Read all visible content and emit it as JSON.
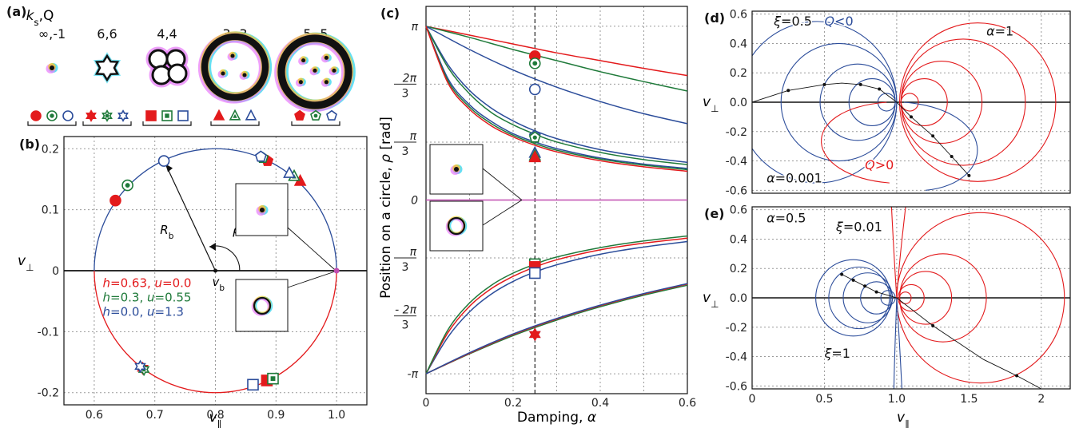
{
  "colors": {
    "red": "#e31a1c",
    "green": "#1f7a3a",
    "blue": "#2b4c9a",
    "magenta": "#c04cb0",
    "black": "#111111"
  },
  "panel_a": {
    "label": "(a)",
    "header": "k",
    "header_sub": "s",
    "header_rest": ",Q",
    "skyrmions": [
      {
        "name": "inf",
        "line1": "∞,-1"
      },
      {
        "name": "66",
        "line1": "6,6"
      },
      {
        "name": "44",
        "line1": "4,4"
      },
      {
        "name": "33",
        "line1": "3,-3"
      },
      {
        "name": "55",
        "line1": "5,-5"
      }
    ],
    "marker_groups": [
      {
        "shape": "circle"
      },
      {
        "shape": "star"
      },
      {
        "shape": "square"
      },
      {
        "shape": "triangle"
      },
      {
        "shape": "pentagon"
      }
    ]
  },
  "chart_data": [
    {
      "id": "b",
      "type": "scatter",
      "label": "(b)",
      "xlabel": "v",
      "xlabel_sub": "∥",
      "ylabel": "v",
      "ylabel_sub": "⊥",
      "xlim": [
        0.55,
        1.05
      ],
      "ylim": [
        -0.22,
        0.22
      ],
      "xticks": [
        "0.6",
        "0.7",
        "0.8",
        "0.9",
        "1.0"
      ],
      "xtick_values": [
        0.6,
        0.7,
        0.8,
        0.9,
        1.0
      ],
      "yticks": [
        "0.2",
        "0.1",
        "0",
        "-0.1",
        "-0.2"
      ],
      "ytick_values": [
        0.2,
        0.1,
        0,
        -0.1,
        -0.2
      ],
      "circle": {
        "cx": 0.8,
        "cy": 0,
        "r": 0.2
      },
      "annotations": {
        "Rb": "R",
        "Rb_sub": "b",
        "vb": "v",
        "vb_sub": "b",
        "rho": "ρ"
      },
      "legend": [
        {
          "h": "h",
          "hval": "=0.63, ",
          "u": "u",
          "uval": "=0.0",
          "color": "red"
        },
        {
          "h": "h",
          "hval": "=0.3, ",
          "u": "u",
          "uval": "=0.55",
          "color": "green"
        },
        {
          "h": "h",
          "hval": "=0.0, ",
          "u": "u",
          "uval": "=1.3",
          "color": "blue"
        }
      ],
      "points": [
        {
          "x": 0.635,
          "y": 0.115,
          "shape": "circle",
          "color": "red"
        },
        {
          "x": 0.655,
          "y": 0.14,
          "shape": "circle",
          "color": "green"
        },
        {
          "x": 0.715,
          "y": 0.18,
          "shape": "circle",
          "color": "blue"
        },
        {
          "x": 0.886,
          "y": 0.18,
          "shape": "pentagon",
          "color": "red"
        },
        {
          "x": 0.878,
          "y": 0.185,
          "shape": "pentagon",
          "color": "green"
        },
        {
          "x": 0.875,
          "y": 0.187,
          "shape": "pentagon",
          "color": "blue"
        },
        {
          "x": 0.94,
          "y": 0.147,
          "shape": "triangle",
          "color": "red"
        },
        {
          "x": 0.93,
          "y": 0.155,
          "shape": "triangle",
          "color": "green"
        },
        {
          "x": 0.922,
          "y": 0.16,
          "shape": "triangle",
          "color": "blue"
        },
        {
          "x": 0.68,
          "y": -0.16,
          "shape": "star",
          "color": "red"
        },
        {
          "x": 0.682,
          "y": -0.162,
          "shape": "star",
          "color": "green"
        },
        {
          "x": 0.676,
          "y": -0.157,
          "shape": "star",
          "color": "blue"
        },
        {
          "x": 0.885,
          "y": -0.18,
          "shape": "square",
          "color": "red"
        },
        {
          "x": 0.895,
          "y": -0.177,
          "shape": "square",
          "color": "green"
        },
        {
          "x": 0.862,
          "y": -0.187,
          "shape": "square",
          "color": "blue"
        },
        {
          "x": 1.0,
          "y": 0.0,
          "shape": "dot",
          "color": "magenta"
        }
      ]
    },
    {
      "id": "c",
      "type": "line",
      "label": "(c)",
      "xlabel": "Damping, ",
      "xlabel_it": "α",
      "ylabel": "Position on a circle,  ",
      "ylabel_it": "ρ",
      "ylabel_unit": " [rad]",
      "xlim": [
        0,
        0.6
      ],
      "ylim": [
        -3.5,
        3.5
      ],
      "xticks": [
        "0",
        "0.2",
        "0.4",
        "0.6"
      ],
      "xtick_values": [
        0,
        0.2,
        0.4,
        0.6
      ],
      "yticks": [
        "π",
        "2π/3",
        "π/3",
        "0",
        "π/3",
        "- 2π/3",
        "-π"
      ],
      "ytick_values": [
        3.14159,
        2.0944,
        1.0472,
        0,
        -1.0472,
        -2.0944,
        -3.14159
      ],
      "vline": 0.25,
      "hline": 0,
      "series": [
        {
          "color": "red",
          "x": [
            0,
            0.1,
            0.2,
            0.3,
            0.4,
            0.5,
            0.6
          ],
          "y": [
            3.14,
            2.98,
            2.82,
            2.66,
            2.52,
            2.38,
            2.25
          ]
        },
        {
          "color": "green",
          "x": [
            0,
            0.1,
            0.2,
            0.3,
            0.4,
            0.5,
            0.6
          ],
          "y": [
            3.14,
            2.94,
            2.72,
            2.52,
            2.32,
            2.14,
            1.97
          ]
        },
        {
          "color": "blue",
          "x": [
            0,
            0.1,
            0.2,
            0.3,
            0.4,
            0.5,
            0.6
          ],
          "y": [
            3.14,
            2.72,
            2.35,
            2.04,
            1.78,
            1.56,
            1.38
          ]
        },
        {
          "color": "blue",
          "x": [
            0,
            0.05,
            0.1,
            0.15,
            0.2,
            0.25,
            0.3,
            0.4,
            0.5,
            0.6
          ],
          "y": [
            3.14,
            2.45,
            1.98,
            1.66,
            1.43,
            1.25,
            1.11,
            0.91,
            0.78,
            0.68
          ]
        },
        {
          "color": "green",
          "x": [
            0,
            0.05,
            0.1,
            0.15,
            0.2,
            0.25,
            0.3,
            0.4,
            0.5,
            0.6
          ],
          "y": [
            3.14,
            2.4,
            1.92,
            1.58,
            1.36,
            1.19,
            1.05,
            0.86,
            0.73,
            0.64
          ]
        },
        {
          "color": "blue",
          "x": [
            0,
            0.05,
            0.1,
            0.15,
            0.2,
            0.25,
            0.3,
            0.4,
            0.5,
            0.6
          ],
          "y": [
            3.14,
            2.2,
            1.72,
            1.42,
            1.2,
            1.05,
            0.93,
            0.76,
            0.65,
            0.57
          ]
        },
        {
          "color": "green",
          "x": [
            0,
            0.05,
            0.1,
            0.15,
            0.2,
            0.25,
            0.3,
            0.4,
            0.5,
            0.6
          ],
          "y": [
            3.14,
            2.16,
            1.68,
            1.38,
            1.17,
            1.02,
            0.9,
            0.74,
            0.63,
            0.55
          ]
        },
        {
          "color": "red",
          "x": [
            0,
            0.05,
            0.1,
            0.15,
            0.2,
            0.25,
            0.3,
            0.4,
            0.5,
            0.6
          ],
          "y": [
            3.14,
            2.12,
            1.64,
            1.34,
            1.14,
            0.99,
            0.87,
            0.71,
            0.6,
            0.52
          ]
        },
        {
          "color": "magenta",
          "x": [
            0,
            0.6
          ],
          "y": [
            0,
            0
          ]
        },
        {
          "color": "blue",
          "x": [
            0,
            0.05,
            0.1,
            0.15,
            0.2,
            0.25,
            0.3,
            0.4,
            0.5,
            0.6
          ],
          "y": [
            -3.14,
            -2.48,
            -2.02,
            -1.7,
            -1.47,
            -1.3,
            -1.17,
            -0.98,
            -0.85,
            -0.75
          ]
        },
        {
          "color": "red",
          "x": [
            0,
            0.05,
            0.1,
            0.15,
            0.2,
            0.25,
            0.3,
            0.4,
            0.5,
            0.6
          ],
          "y": [
            -3.14,
            -2.4,
            -1.92,
            -1.6,
            -1.38,
            -1.21,
            -1.08,
            -0.9,
            -0.78,
            -0.69
          ]
        },
        {
          "color": "green",
          "x": [
            0,
            0.05,
            0.1,
            0.15,
            0.2,
            0.25,
            0.3,
            0.4,
            0.5,
            0.6
          ],
          "y": [
            -3.14,
            -2.35,
            -1.86,
            -1.54,
            -1.32,
            -1.16,
            -1.03,
            -0.86,
            -0.74,
            -0.65
          ]
        },
        {
          "color": "green",
          "x": [
            0,
            0.1,
            0.2,
            0.3,
            0.4,
            0.5,
            0.6
          ],
          "y": [
            -3.14,
            -2.78,
            -2.45,
            -2.17,
            -1.93,
            -1.72,
            -1.54
          ]
        },
        {
          "color": "red",
          "x": [
            0,
            0.1,
            0.2,
            0.3,
            0.4,
            0.5,
            0.6
          ],
          "y": [
            -3.14,
            -2.77,
            -2.43,
            -2.15,
            -1.91,
            -1.7,
            -1.52
          ]
        },
        {
          "color": "blue",
          "x": [
            0,
            0.1,
            0.2,
            0.3,
            0.4,
            0.5,
            0.6
          ],
          "y": [
            -3.14,
            -2.76,
            -2.42,
            -2.14,
            -1.9,
            -1.69,
            -1.51
          ]
        }
      ],
      "markers": [
        {
          "x": 0.25,
          "y": 2.6,
          "shape": "circle",
          "color": "red"
        },
        {
          "x": 0.25,
          "y": 2.47,
          "shape": "circle",
          "color": "green"
        },
        {
          "x": 0.25,
          "y": 2.0,
          "shape": "circle",
          "color": "blue"
        },
        {
          "x": 0.25,
          "y": 1.16,
          "shape": "pentagon",
          "color": "blue"
        },
        {
          "x": 0.25,
          "y": 1.13,
          "shape": "pentagon",
          "color": "green"
        },
        {
          "x": 0.25,
          "y": 0.85,
          "shape": "triangle",
          "color": "blue"
        },
        {
          "x": 0.25,
          "y": 0.8,
          "shape": "triangle",
          "color": "green"
        },
        {
          "x": 0.25,
          "y": 0.77,
          "shape": "triangle",
          "color": "red"
        },
        {
          "x": 0.25,
          "y": -1.16,
          "shape": "square",
          "color": "green"
        },
        {
          "x": 0.25,
          "y": -1.21,
          "shape": "square",
          "color": "red"
        },
        {
          "x": 0.25,
          "y": -1.32,
          "shape": "square",
          "color": "blue"
        },
        {
          "x": 0.25,
          "y": -2.43,
          "shape": "star",
          "color": "blue"
        },
        {
          "x": 0.25,
          "y": -2.43,
          "shape": "star",
          "color": "red"
        }
      ]
    },
    {
      "id": "d",
      "type": "line",
      "label": "(d)",
      "ylabel": "v",
      "ylabel_sub": "⊥",
      "xlim": [
        0,
        2.2
      ],
      "ylim": [
        -0.62,
        0.62
      ],
      "yticks": [
        "0.6",
        "0.4",
        "0.2",
        "0.0",
        "-0.2",
        "-0.4",
        "-0.6"
      ],
      "ytick_values": [
        0.6,
        0.4,
        0.2,
        0.0,
        -0.2,
        -0.4,
        -0.6
      ],
      "annotations": [
        {
          "text": "ξ=0.5",
          "color": "black",
          "x": 0.15,
          "y": 0.55
        },
        {
          "text": "Q<0",
          "color": "blue",
          "x": 0.5,
          "y": 0.55
        },
        {
          "text": "α=1",
          "color": "black",
          "x": 1.62,
          "y": 0.48
        },
        {
          "text": "α=0.001",
          "color": "black",
          "x": 0.1,
          "y": -0.52
        },
        {
          "text": "Q>0",
          "color": "red",
          "x": 0.78,
          "y": -0.43
        }
      ],
      "circles_left": [
        {
          "c": 0.93,
          "r": 0.06
        },
        {
          "c": 0.83,
          "r": 0.16
        },
        {
          "c": 0.73,
          "r": 0.26
        },
        {
          "c": 0.6,
          "r": 0.4
        },
        {
          "c": 0.45,
          "r": 0.55
        }
      ],
      "circles_right": [
        {
          "c": 1.09,
          "r": 0.06
        },
        {
          "c": 1.19,
          "r": 0.16
        },
        {
          "c": 1.31,
          "r": 0.28
        },
        {
          "c": 1.46,
          "r": 0.43
        },
        {
          "c": 1.56,
          "r": 0.54
        }
      ]
    },
    {
      "id": "e",
      "type": "line",
      "label": "(e)",
      "xlabel": "v",
      "xlabel_sub": "∥",
      "ylabel": "v",
      "ylabel_sub": "⊥",
      "xlim": [
        0,
        2.2
      ],
      "ylim": [
        -0.62,
        0.62
      ],
      "xticks": [
        "0",
        "0.5",
        "1.0",
        "1.5",
        "2"
      ],
      "xtick_values": [
        0,
        0.5,
        1.0,
        1.5,
        2.0
      ],
      "yticks": [
        "0.6",
        "0.4",
        "0.2",
        "0.0",
        "-0.2",
        "-0.4",
        "-0.6"
      ],
      "ytick_values": [
        0.6,
        0.4,
        0.2,
        0.0,
        -0.2,
        -0.4,
        -0.6
      ],
      "annotations": [
        {
          "text": "α=0.5",
          "color": "black",
          "x": 0.1,
          "y": 0.54
        },
        {
          "text": "ξ=0.01",
          "color": "black",
          "x": 0.58,
          "y": 0.48
        },
        {
          "text": "ξ=1",
          "color": "black",
          "x": 0.5,
          "y": -0.38
        }
      ],
      "circles_left": [
        {
          "c": 0.94,
          "r": 0.05
        },
        {
          "c": 0.86,
          "r": 0.11
        },
        {
          "c": 0.8,
          "r": 0.17
        },
        {
          "c": 0.74,
          "r": 0.21
        },
        {
          "c": 0.7,
          "r": 0.26
        }
      ],
      "circles_right": [
        {
          "c": 1.06,
          "r": 0.04
        },
        {
          "c": 1.1,
          "r": 0.09
        },
        {
          "c": 1.2,
          "r": 0.18
        },
        {
          "c": 1.32,
          "r": 0.3
        },
        {
          "c": 1.58,
          "r": 0.58
        }
      ]
    }
  ]
}
